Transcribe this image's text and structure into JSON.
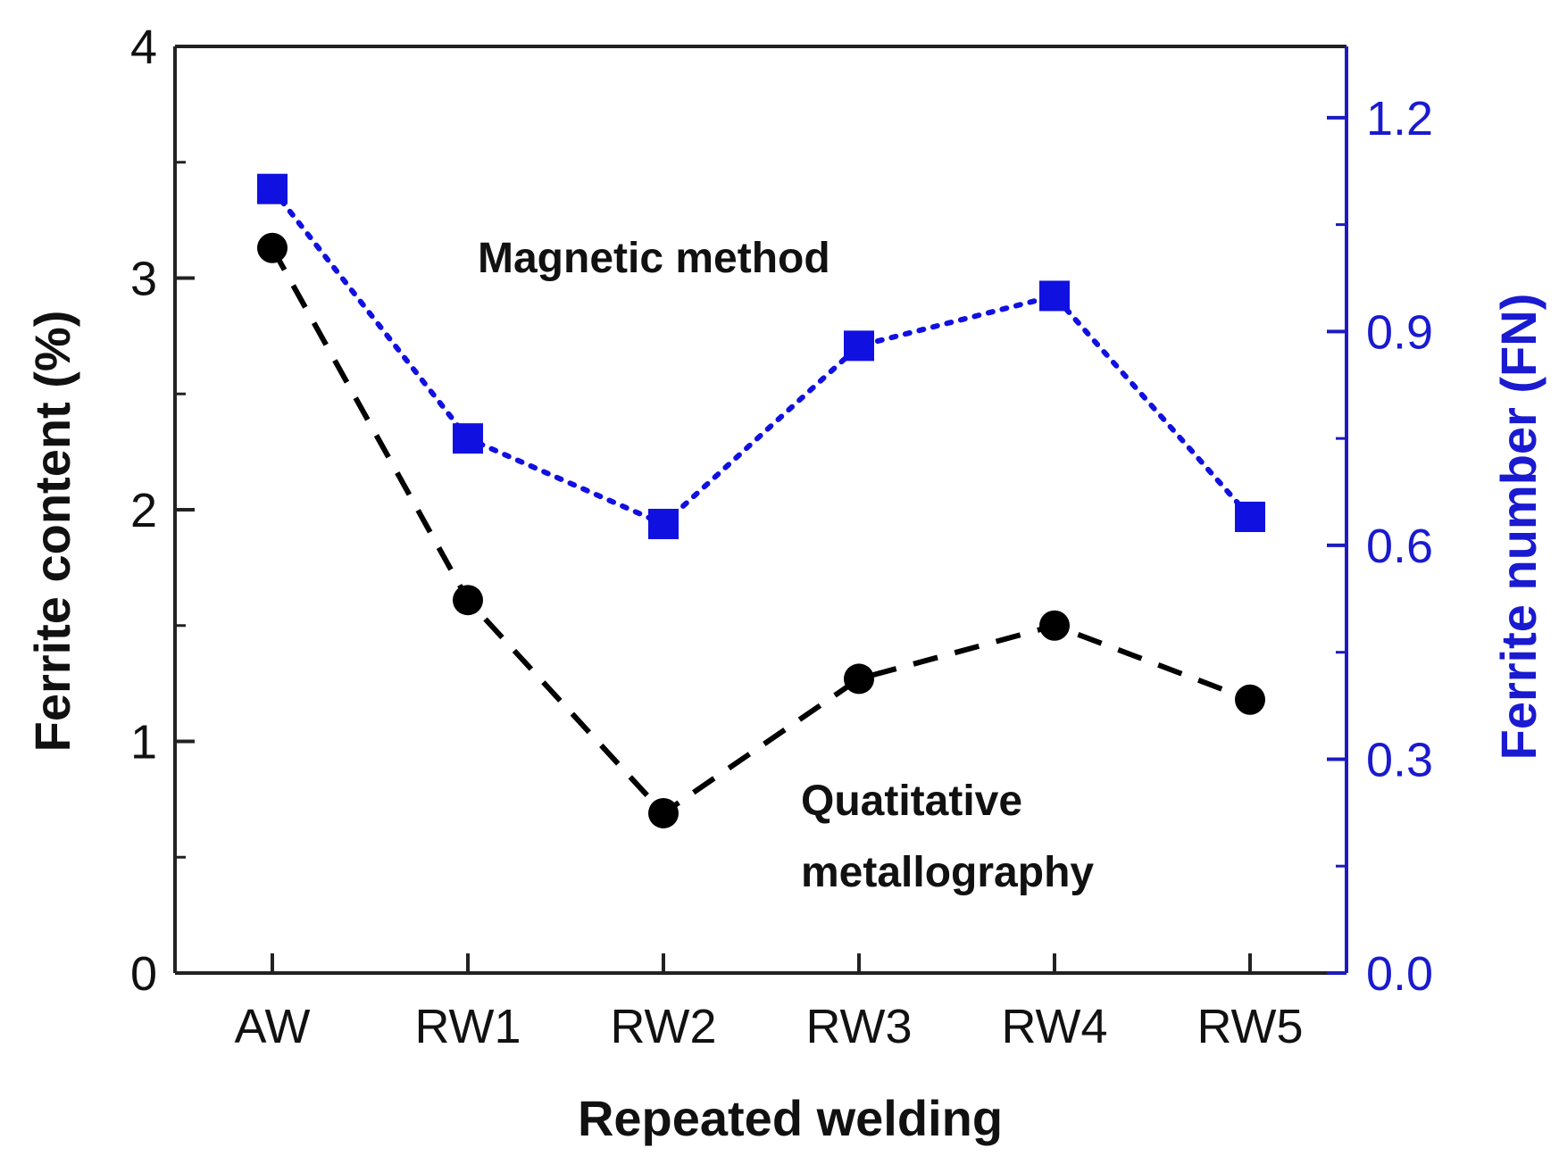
{
  "chart_data": {
    "type": "line",
    "xlabel": "Repeated welding",
    "ylabel_left": "Ferrite content (%)",
    "ylabel_right": "Ferrite number (FN)",
    "categories": [
      "AW",
      "RW1",
      "RW2",
      "RW3",
      "RW4",
      "RW5"
    ],
    "ylim_left": [
      0,
      4
    ],
    "ylim_right": [
      0,
      1.3
    ],
    "left_ticks": [
      0,
      1,
      2,
      3,
      4
    ],
    "left_tick_labels": [
      "0",
      "1",
      "2",
      "3",
      "4"
    ],
    "left_minor_ticks": [
      0.5,
      1.5,
      2.5,
      3.5
    ],
    "right_ticks": [
      0,
      0.3,
      0.6,
      0.9,
      1.2
    ],
    "right_tick_labels": [
      "0.0",
      "0.3",
      "0.6",
      "0.9",
      "1.2"
    ],
    "right_minor_ticks": [
      0.15,
      0.45,
      0.75,
      1.05
    ],
    "series": [
      {
        "name": "Quatitative metallography",
        "axis": "left",
        "marker": "circle",
        "line_style": "dashed",
        "color": "#000000",
        "values": [
          3.13,
          1.61,
          0.69,
          1.27,
          1.5,
          1.18
        ]
      },
      {
        "name": "Magnetic method",
        "axis": "right",
        "marker": "square",
        "line_style": "dotted",
        "color": "#1010e0",
        "values": [
          1.1,
          0.75,
          0.63,
          0.88,
          0.95,
          0.64
        ]
      }
    ],
    "annotations": {
      "magnetic": "Magnetic method",
      "metallography_line1": "Quatitative",
      "metallography_line2": "metallography"
    },
    "colors": {
      "axis": "#222222",
      "right_axis": "#1c1cc0",
      "right_text": "#1a1ad0"
    }
  }
}
